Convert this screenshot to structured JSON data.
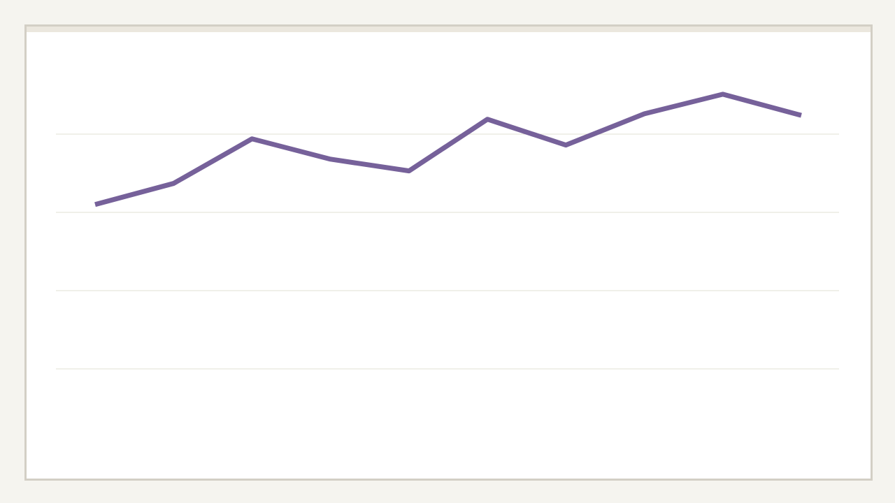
{
  "chart_data": {
    "type": "line",
    "title": "",
    "xlabel": "",
    "ylabel": "",
    "x": [
      1,
      2,
      3,
      4,
      5,
      6,
      7,
      8,
      9,
      10
    ],
    "series": [
      {
        "values": [
          2.1,
          2.37,
          2.94,
          2.68,
          2.53,
          3.19,
          2.86,
          3.26,
          3.51,
          3.24
        ],
        "color": "#76619a"
      }
    ],
    "gridlines": [
      0,
      1,
      2,
      3
    ],
    "ylim": [
      -1,
      4.3
    ],
    "xlim": [
      0.5,
      10.5
    ],
    "grid": true,
    "grid_color": "#e2e0d3",
    "legend": "none"
  }
}
